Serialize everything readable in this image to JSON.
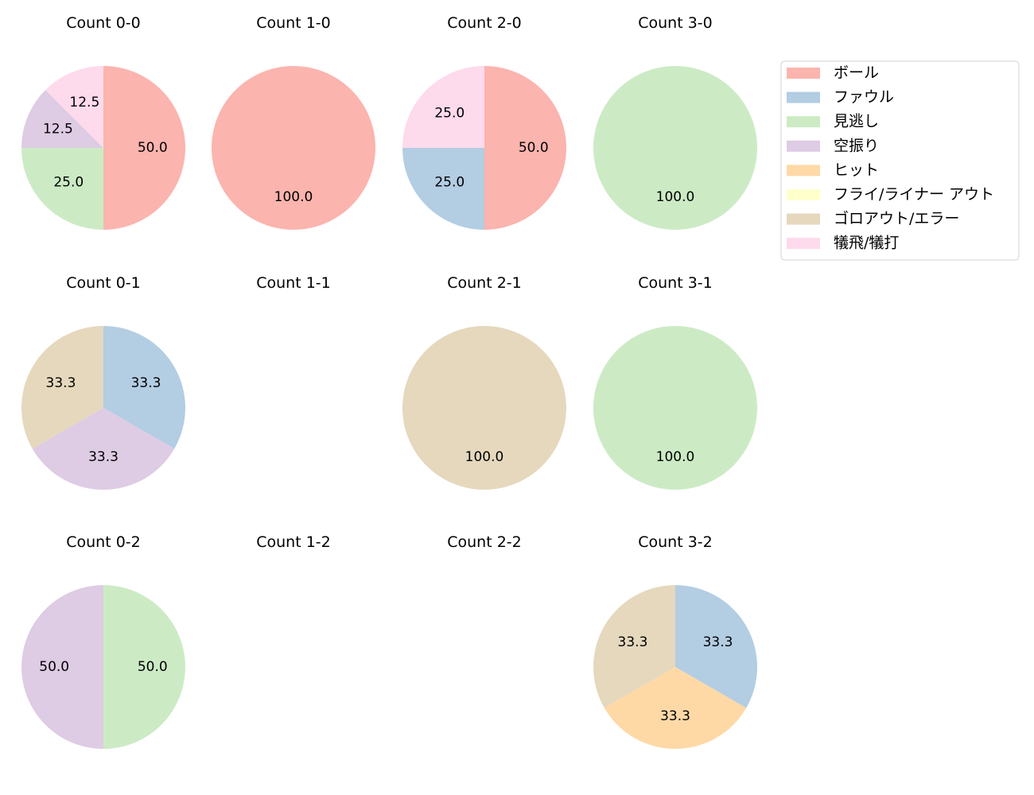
{
  "chart_data": {
    "type": "pie",
    "legend_placement": "top-right",
    "legend": [
      "ボール",
      "ファウル",
      "見逃し",
      "空振り",
      "ヒット",
      "フライ/ライナー アウト",
      "ゴロアウト/エラー",
      "犠飛/犠打"
    ],
    "colors": [
      "#fbb4ae",
      "#b3cde3",
      "#ccebc5",
      "#decbe4",
      "#fed9a6",
      "#ffffcc",
      "#e5d8bd",
      "#fddaec"
    ],
    "pies": [
      {
        "title": "Count 0-0",
        "values": [
          50.0,
          0,
          25.0,
          12.5,
          0,
          0,
          0,
          12.5
        ]
      },
      {
        "title": "Count 1-0",
        "values": [
          100.0,
          0,
          0,
          0,
          0,
          0,
          0,
          0
        ]
      },
      {
        "title": "Count 2-0",
        "values": [
          50.0,
          25.0,
          0,
          0,
          0,
          0,
          0,
          25.0
        ]
      },
      {
        "title": "Count 3-0",
        "values": [
          0,
          0,
          100.0,
          0,
          0,
          0,
          0,
          0
        ]
      },
      {
        "title": "Count 0-1",
        "values": [
          0,
          33.3,
          0,
          33.3,
          0,
          0,
          33.3,
          0
        ]
      },
      {
        "title": "Count 1-1",
        "values": []
      },
      {
        "title": "Count 2-1",
        "values": [
          0,
          0,
          0,
          0,
          0,
          0,
          100.0,
          0
        ]
      },
      {
        "title": "Count 3-1",
        "values": [
          0,
          0,
          100.0,
          0,
          0,
          0,
          0,
          0
        ]
      },
      {
        "title": "Count 0-2",
        "values": [
          0,
          0,
          50.0,
          50.0,
          0,
          0,
          0,
          0
        ]
      },
      {
        "title": "Count 1-2",
        "values": []
      },
      {
        "title": "Count 2-2",
        "values": []
      },
      {
        "title": "Count 3-2",
        "values": [
          0,
          33.3,
          0,
          0,
          33.3,
          0,
          33.3,
          0
        ]
      }
    ]
  }
}
